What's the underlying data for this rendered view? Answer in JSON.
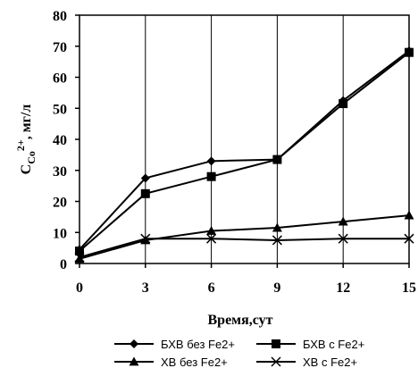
{
  "chart_data": {
    "type": "line",
    "x": [
      0,
      3,
      6,
      9,
      12,
      15
    ],
    "xticks": [
      "0",
      "3",
      "6",
      "9",
      "12",
      "15"
    ],
    "yticks": [
      "0",
      "10",
      "20",
      "30",
      "40",
      "50",
      "60",
      "70",
      "80"
    ],
    "xlim": [
      0,
      15
    ],
    "ylim": [
      0,
      80
    ],
    "xlabel": "Время,сут",
    "ylabel": {
      "main": "C",
      "sub": "Co",
      "sup": "2+",
      "rest": ", мг/л"
    },
    "grid": "vertical",
    "legend_position": "bottom",
    "series": [
      {
        "name": "БХВ без Fe2+",
        "marker": "diamond",
        "values": [
          4.5,
          27.5,
          33,
          33.5,
          52.5,
          68.5
        ]
      },
      {
        "name": "БХВ с Fe2+",
        "marker": "square",
        "values": [
          4,
          22.5,
          28,
          33.5,
          51.5,
          68
        ]
      },
      {
        "name": "ХВ без Fe2+",
        "marker": "triangle",
        "values": [
          1.5,
          7.5,
          10.5,
          11.5,
          13.5,
          15.5
        ]
      },
      {
        "name": "ХВ с Fe2+",
        "marker": "x",
        "values": [
          2,
          8,
          8,
          7.5,
          8,
          8
        ]
      }
    ]
  }
}
